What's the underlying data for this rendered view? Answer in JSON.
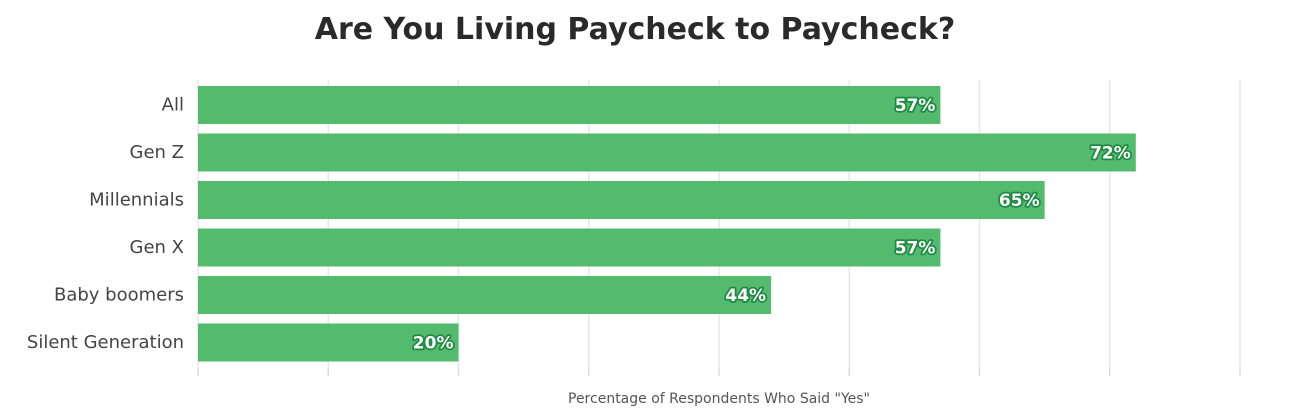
{
  "chart_data": {
    "type": "bar",
    "orientation": "horizontal",
    "title": "Are You Living Paycheck to Paycheck?",
    "xlabel": "Percentage of Respondents Who Said \"Yes\"",
    "ylabel": "",
    "categories": [
      "All",
      "Gen Z",
      "Millennials",
      "Gen X",
      "Baby boomers",
      "Silent Generation"
    ],
    "values": [
      57,
      72,
      65,
      57,
      44,
      20
    ],
    "value_labels": [
      "57%",
      "72%",
      "65%",
      "57%",
      "44%",
      "20%"
    ],
    "xlim": [
      0,
      80
    ],
    "grid": true,
    "legend": "none",
    "bar_color": "#52bb6e",
    "label_color": "#ffffff",
    "label_outline_color": "#1e8a42"
  }
}
